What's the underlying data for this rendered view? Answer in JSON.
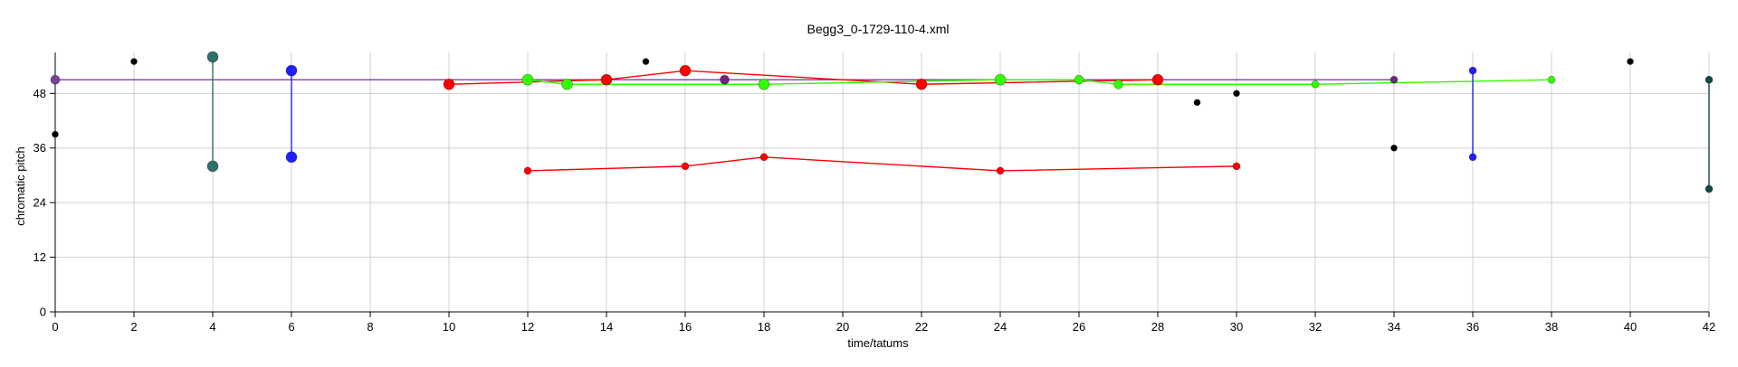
{
  "chart_data": {
    "type": "scatter",
    "title": "Begg3_0-1729-110-4.xml",
    "xlabel": "time/tatums",
    "ylabel": "chromatic pitch",
    "xlim": [
      0,
      42
    ],
    "ylim": [
      0,
      57
    ],
    "xticks": [
      0,
      2,
      4,
      6,
      8,
      10,
      12,
      14,
      16,
      18,
      20,
      22,
      24,
      26,
      28,
      30,
      32,
      34,
      36,
      38,
      40,
      42
    ],
    "yticks": [
      0,
      12,
      24,
      36,
      48
    ],
    "grid": true,
    "legend": "none",
    "colors": {
      "purple": "#7b3fa0",
      "teal": "#2f6f6a",
      "blue": "#1f1fff",
      "red": "#ff0000",
      "green": "#33ff00",
      "black": "#000000",
      "darkteal": "#0f4a45",
      "grid": "#d0d0d0"
    },
    "series": [
      {
        "color": "#7b3fa0",
        "mode": "line",
        "points": [
          [
            0,
            51
          ],
          [
            34,
            51
          ]
        ]
      },
      {
        "color": "#2f6f6a",
        "mode": "line",
        "points": [
          [
            4,
            56
          ],
          [
            4,
            32
          ]
        ]
      },
      {
        "color": "#1f1fff",
        "mode": "line",
        "points": [
          [
            6,
            53
          ],
          [
            6,
            34
          ]
        ]
      },
      {
        "color": "#ff0000",
        "mode": "line",
        "points": [
          [
            10,
            50
          ],
          [
            14,
            51
          ],
          [
            16,
            53
          ],
          [
            22,
            50
          ],
          [
            28,
            51
          ]
        ]
      },
      {
        "color": "#33ff00",
        "mode": "line",
        "points": [
          [
            12,
            51
          ],
          [
            13,
            50
          ],
          [
            18,
            50
          ],
          [
            24,
            51
          ],
          [
            26,
            51
          ],
          [
            27,
            50
          ],
          [
            32,
            50
          ],
          [
            38,
            51
          ]
        ]
      },
      {
        "color": "#ff0000",
        "mode": "line",
        "points": [
          [
            12,
            31
          ],
          [
            16,
            32
          ],
          [
            18,
            34
          ],
          [
            24,
            31
          ],
          [
            30,
            32
          ]
        ]
      },
      {
        "color": "#1f1fff",
        "mode": "line",
        "points": [
          [
            36,
            53
          ],
          [
            36,
            34
          ]
        ]
      },
      {
        "color": "#0f4a45",
        "mode": "line",
        "points": [
          [
            42,
            51
          ],
          [
            42,
            27
          ]
        ]
      },
      {
        "color": "#000000",
        "mode": "points",
        "points": [
          [
            0,
            39
          ],
          [
            2,
            55
          ],
          [
            15,
            55
          ],
          [
            29,
            46
          ],
          [
            30,
            48
          ],
          [
            34,
            36
          ],
          [
            40,
            55
          ]
        ]
      }
    ],
    "markers": [
      {
        "x": 0,
        "y": 51,
        "color": "#7b3fa0",
        "size": 5
      },
      {
        "x": 4,
        "y": 56,
        "color": "#2f6f6a",
        "size": 6
      },
      {
        "x": 4,
        "y": 32,
        "color": "#2f6f6a",
        "size": 6
      },
      {
        "x": 6,
        "y": 53,
        "color": "#1f1fff",
        "size": 6
      },
      {
        "x": 6,
        "y": 34,
        "color": "#1f1fff",
        "size": 6
      },
      {
        "x": 10,
        "y": 50,
        "color": "#ff0000",
        "size": 6
      },
      {
        "x": 14,
        "y": 51,
        "color": "#ff0000",
        "size": 6
      },
      {
        "x": 16,
        "y": 53,
        "color": "#ff0000",
        "size": 6
      },
      {
        "x": 22,
        "y": 50,
        "color": "#ff0000",
        "size": 6
      },
      {
        "x": 28,
        "y": 51,
        "color": "#ff0000",
        "size": 6
      },
      {
        "x": 12,
        "y": 51,
        "color": "#33ff00",
        "size": 6
      },
      {
        "x": 13,
        "y": 50,
        "color": "#33ff00",
        "size": 6
      },
      {
        "x": 18,
        "y": 50,
        "color": "#33ff00",
        "size": 6
      },
      {
        "x": 24,
        "y": 51,
        "color": "#33ff00",
        "size": 6
      },
      {
        "x": 26,
        "y": 51,
        "color": "#33ff00",
        "size": 5
      },
      {
        "x": 27,
        "y": 50,
        "color": "#33ff00",
        "size": 5
      },
      {
        "x": 32,
        "y": 50,
        "color": "#33ff00",
        "size": 4
      },
      {
        "x": 38,
        "y": 51,
        "color": "#33ff00",
        "size": 4
      },
      {
        "x": 12,
        "y": 31,
        "color": "#ff0000",
        "size": 4
      },
      {
        "x": 16,
        "y": 32,
        "color": "#ff0000",
        "size": 4
      },
      {
        "x": 18,
        "y": 34,
        "color": "#ff0000",
        "size": 4
      },
      {
        "x": 24,
        "y": 31,
        "color": "#ff0000",
        "size": 4
      },
      {
        "x": 30,
        "y": 32,
        "color": "#ff0000",
        "size": 4
      },
      {
        "x": 17,
        "y": 51,
        "color": "#6a2a7a",
        "size": 5
      },
      {
        "x": 34,
        "y": 51,
        "color": "#6a2a7a",
        "size": 4
      },
      {
        "x": 36,
        "y": 53,
        "color": "#1f1fff",
        "size": 4
      },
      {
        "x": 36,
        "y": 34,
        "color": "#1f1fff",
        "size": 4
      },
      {
        "x": 42,
        "y": 51,
        "color": "#0f4a45",
        "size": 4
      },
      {
        "x": 42,
        "y": 27,
        "color": "#0f4a45",
        "size": 4
      },
      {
        "x": 0,
        "y": 39,
        "color": "#000000",
        "size": 3.5
      },
      {
        "x": 2,
        "y": 55,
        "color": "#000000",
        "size": 3.5
      },
      {
        "x": 15,
        "y": 55,
        "color": "#000000",
        "size": 3.5
      },
      {
        "x": 29,
        "y": 46,
        "color": "#000000",
        "size": 3.5
      },
      {
        "x": 30,
        "y": 48,
        "color": "#000000",
        "size": 3.5
      },
      {
        "x": 34,
        "y": 36,
        "color": "#000000",
        "size": 3.5
      },
      {
        "x": 40,
        "y": 55,
        "color": "#000000",
        "size": 3.5
      }
    ]
  }
}
